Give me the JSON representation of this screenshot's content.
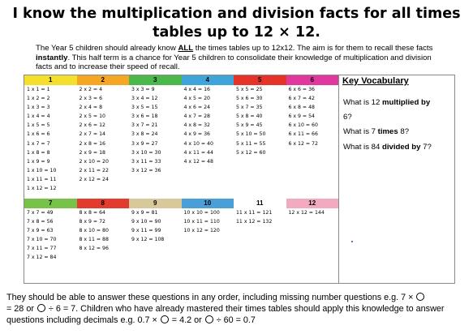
{
  "title_line1": "I know the multiplication and division facts for all times",
  "title_line2": "tables up to 12 × 12.",
  "intro": {
    "p1": "The Year 5 children should already know ",
    "p1_strong": "ALL",
    "p2": " the times tables up to 12x12. The aim is for them to recall these facts ",
    "p2_strong": "instantly",
    "p3": ". This half term is a chance for Year 5 children to consolidate their knowledge of multiplication and division facts and to increase their speed of recall."
  },
  "colors": {
    "1": "#f3df2c",
    "2": "#f5a623",
    "3": "#4cb84c",
    "4": "#3fa5d8",
    "5": "#e5332a",
    "6": "#e0389c",
    "7": "#78c24a",
    "8": "#e23c2f",
    "9": "#d7c99a",
    "10": "#4a9fd8",
    "11": "#ffffff",
    "12": "#f2aac0"
  },
  "tables_top": [
    {
      "label": "1",
      "facts": [
        "1 x 1 = 1",
        "1 x 2 = 2",
        "1 x 3 = 3",
        "1 x 4 = 4",
        "1 x 5 = 5",
        "1 x 6 = 6",
        "1 x 7 = 7",
        "1 x 8 = 8",
        "1 x 9 = 9",
        "1 x 10 = 10",
        "1 x 11 = 11",
        "1 x 12 = 12"
      ]
    },
    {
      "label": "2",
      "facts": [
        "2 x 2 = 4",
        "2 x 3 = 6",
        "2 x 4 = 8",
        "2 x 5 = 10",
        "2 x 6 = 12",
        "2 x 7 = 14",
        "2 x 8 = 16",
        "2 x 9 = 18",
        "2 x 10 = 20",
        "2 x 11 = 22",
        "2 x 12 = 24"
      ]
    },
    {
      "label": "3",
      "facts": [
        "3 x 3 = 9",
        "3 x 4 = 12",
        "3 x 5 = 15",
        "3 x 6 = 18",
        "3 x 7 = 21",
        "3 x 8 = 24",
        "3 x 9 = 27",
        "3 x 10 = 30",
        "3 x 11 = 33",
        "3 x 12 = 36"
      ]
    },
    {
      "label": "4",
      "facts": [
        "4 x 4 = 16",
        "4 x 5 = 20",
        "4 x 6 = 24",
        "4 x 7 = 28",
        "4 x 8 = 32",
        "4 x 9 = 36",
        "4 x 10 = 40",
        "4 x 11 = 44",
        "4 x 12 = 48"
      ]
    },
    {
      "label": "5",
      "facts": [
        "5 x 5 = 25",
        "5 x 6 = 30",
        "5 x 7 = 35",
        "5 x 8 = 40",
        "5 x 9 = 45",
        "5 x 10 = 50",
        "5 x 11 = 55",
        "5 x 12 = 60"
      ]
    },
    {
      "label": "6",
      "facts": [
        "6 x 6 = 36",
        "6 x 7 = 42",
        "6 x 8 = 48",
        "6 x 9 = 54",
        "6 x 10 = 60",
        "6 x 11 = 66",
        "6 x 12 = 72"
      ]
    }
  ],
  "tables_bottom": [
    {
      "label": "7",
      "facts": [
        "7 x 7 = 49",
        "7 x 8 = 56",
        "7 x 9 = 63",
        "7 x 10 = 70",
        "7 x 11 = 77",
        "7 x 12 = 84"
      ]
    },
    {
      "label": "8",
      "facts": [
        "8 x 8 = 64",
        "8 x 9 = 72",
        "8 x 10 = 80",
        "8 x 11 = 88",
        "8 x 12 = 96"
      ]
    },
    {
      "label": "9",
      "facts": [
        "9 x 9 = 81",
        "9 x 10 = 90",
        "9 x 11 = 99",
        "9 x 12 = 108"
      ]
    },
    {
      "label": "10",
      "facts": [
        "10 x 10 = 100",
        "10 x 11 = 110",
        "10 x 12 = 120"
      ]
    },
    {
      "label": "11",
      "facts": [
        "11 x 11 = 121",
        "11 x 12 = 132"
      ]
    },
    {
      "label": "12",
      "facts": [
        "12 x 12 = 144"
      ]
    }
  ],
  "vocab": {
    "heading": "Key Vocabulary",
    "q1_pre": "What is 12 ",
    "q1_strong": "multiplied by",
    "q1_cont": "6?",
    "q2_pre": "What is 7 ",
    "q2_strong": "times",
    "q2_post": " 8?",
    "q3_pre": "What is 84 ",
    "q3_strong": "divided by",
    "q3_post": " 7?"
  },
  "footer": {
    "a": "They should be able to answer these questions in any order, including missing number questions e.g. 7 ×",
    "b": "= 28 or",
    "c": "÷ 6 = 7. Children who have already mastered their times tables should apply this knowledge to answer questions including decimals e.g. 0.7 ×",
    "d": "= 4.2 or",
    "e": "÷ 60 = 0.7"
  }
}
